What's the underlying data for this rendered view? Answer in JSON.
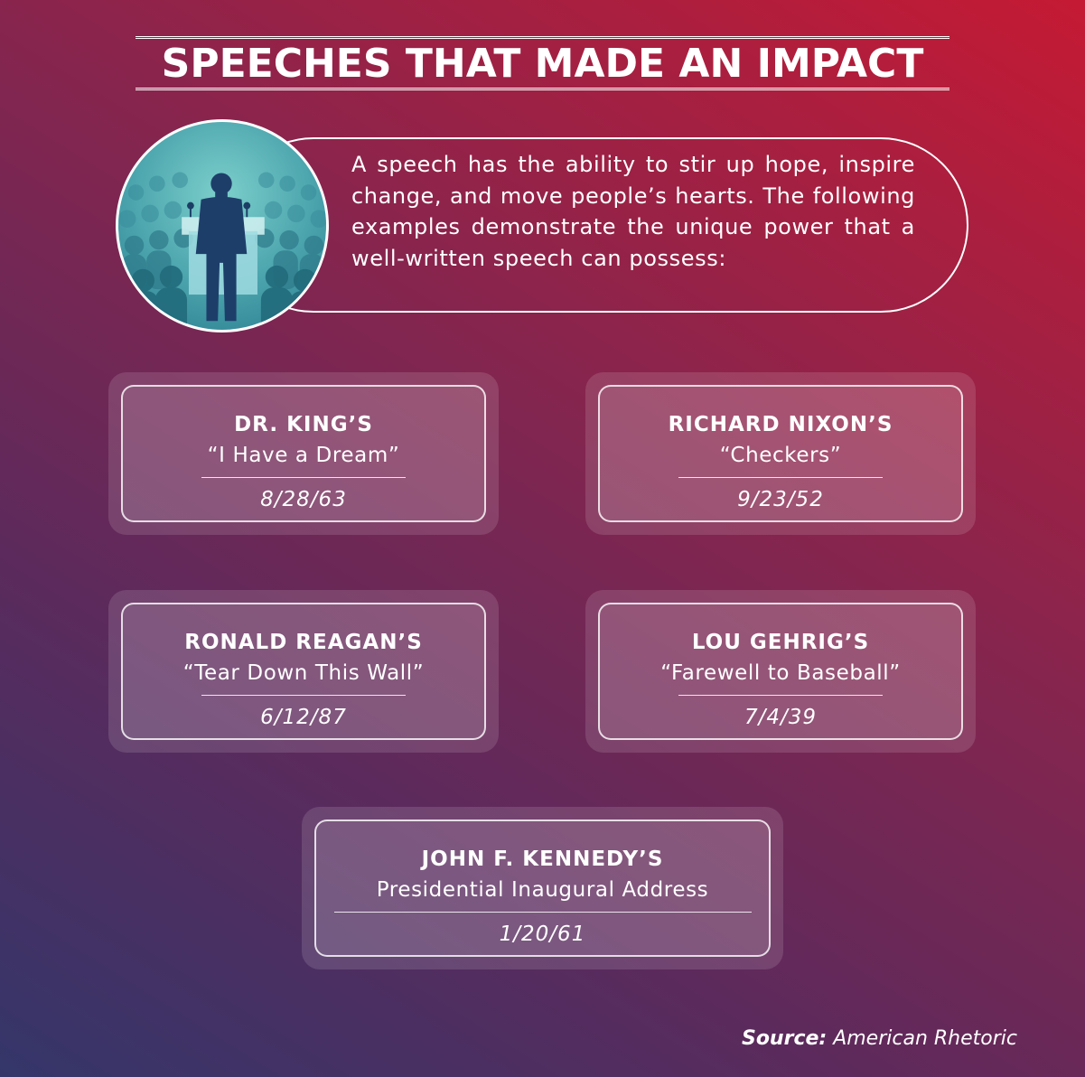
{
  "title": "SPEECHES THAT MADE AN IMPACT",
  "intro": {
    "icon": "speaker-at-podium-icon",
    "text": "A speech has the ability to stir up hope, inspire change, and move people’s hearts. The following examples demonstrate the unique power that a well-written speech can possess:"
  },
  "speeches": [
    {
      "speaker": "DR. KING’S",
      "title": "“I Have a Dream”",
      "date": "8/28/63"
    },
    {
      "speaker": "RICHARD NIXON’S",
      "title": "“Checkers”",
      "date": "9/23/52"
    },
    {
      "speaker": "RONALD REAGAN’S",
      "title": "“Tear Down This Wall”",
      "date": "6/12/87"
    },
    {
      "speaker": "LOU GEHRIG’S",
      "title": "“Farewell to Baseball”",
      "date": "7/4/39"
    },
    {
      "speaker": "JOHN F. KENNEDY’S",
      "title": "Presidential Inaugural Address",
      "date": "1/20/61"
    }
  ],
  "source": {
    "label": "Source:",
    "value": "American Rhetoric"
  },
  "colors": {
    "gradient_start": "#34366a",
    "gradient_end": "#c51a34",
    "avatar_teal": "#4aa3ac"
  }
}
